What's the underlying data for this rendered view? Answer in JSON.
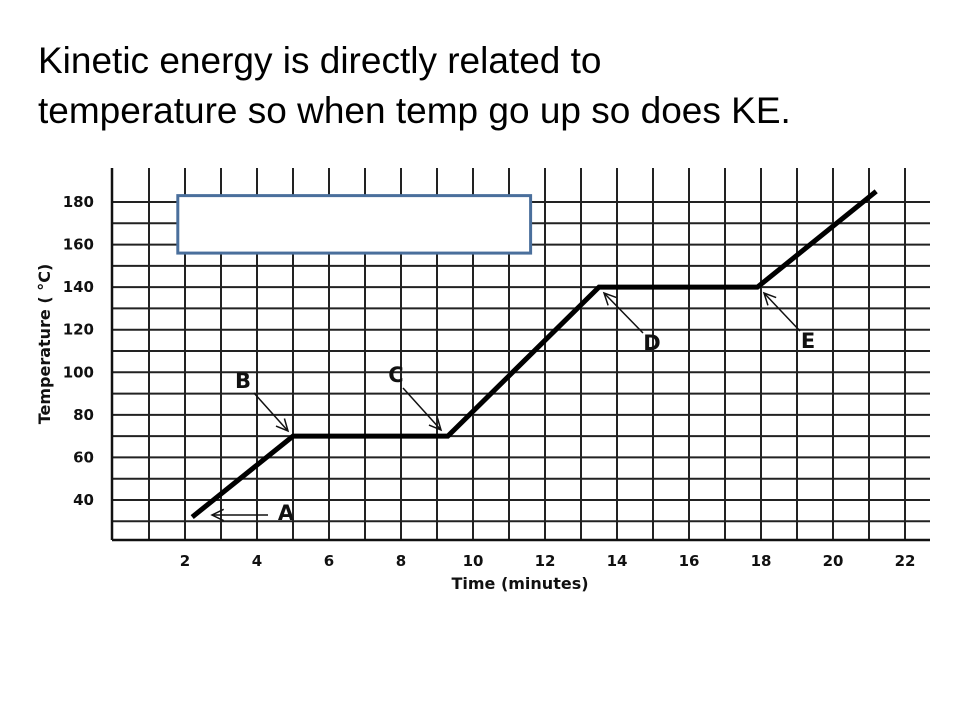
{
  "slide": {
    "line1": "Kinetic energy is directly related to",
    "line2": "temperature so when temp go up so does KE."
  },
  "chart_data": {
    "type": "line",
    "title": "",
    "xlabel": "Time (minutes)",
    "ylabel": "Temperature ( °C)",
    "xlim": [
      0,
      22
    ],
    "ylim": [
      20,
      180
    ],
    "x_ticks": [
      2,
      4,
      6,
      8,
      10,
      12,
      14,
      16,
      18,
      20,
      22
    ],
    "y_ticks": [
      40,
      60,
      80,
      100,
      120,
      140,
      160,
      180
    ],
    "grid": true,
    "series": [
      {
        "points": [
          [
            2.2,
            32
          ],
          [
            5.0,
            70
          ],
          [
            9.3,
            70
          ],
          [
            13.5,
            140
          ],
          [
            17.9,
            140
          ],
          [
            21.2,
            185
          ]
        ]
      }
    ],
    "annotations": [
      {
        "label": "A",
        "x": 2.4,
        "y": 34
      },
      {
        "label": "B",
        "x": 5.0,
        "y": 70
      },
      {
        "label": "C",
        "x": 9.3,
        "y": 70
      },
      {
        "label": "D",
        "x": 13.6,
        "y": 140
      },
      {
        "label": "E",
        "x": 18.0,
        "y": 140
      }
    ],
    "overlay_box": {
      "x0": 1.8,
      "x1": 11.6,
      "y0": 156,
      "y1": 183,
      "color": "#4a6f9c"
    }
  }
}
